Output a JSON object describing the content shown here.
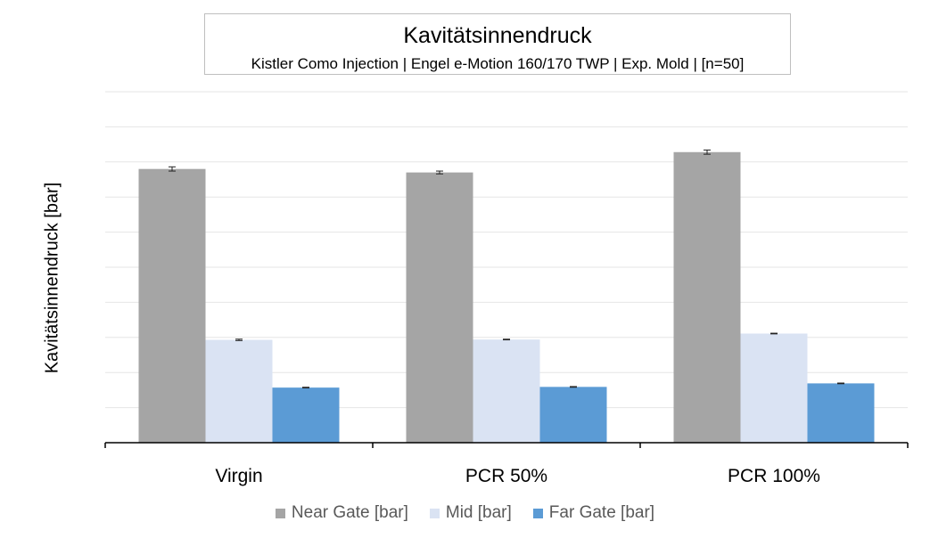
{
  "chart_data": {
    "type": "bar",
    "title": "Kavitätsinnendruck",
    "subtitle": "Kistler Como Injection | Engel e-Motion 160/170 TWP | Exp. Mold | [n=50]",
    "ylabel": "Kavitätsinnendruck [bar]",
    "xlabel": "",
    "categories": [
      "Virgin",
      "PCR 50%",
      "PCR 100%"
    ],
    "y_tick_labels_shown": false,
    "grid": true,
    "legend_position": "bottom",
    "ylim": [
      0,
      1000
    ],
    "series": [
      {
        "name": "Near Gate [bar]",
        "color": "#a5a5a5",
        "values": [
          780,
          770,
          828
        ],
        "errors": [
          6,
          4,
          6
        ]
      },
      {
        "name": "Mid [bar]",
        "color": "#dae3f3",
        "values": [
          293,
          294,
          311
        ],
        "errors": [
          2,
          1,
          1
        ]
      },
      {
        "name": "Far Gate [bar]",
        "color": "#5b9bd5",
        "values": [
          157,
          159,
          169
        ],
        "errors": [
          1,
          1,
          1
        ]
      }
    ]
  }
}
